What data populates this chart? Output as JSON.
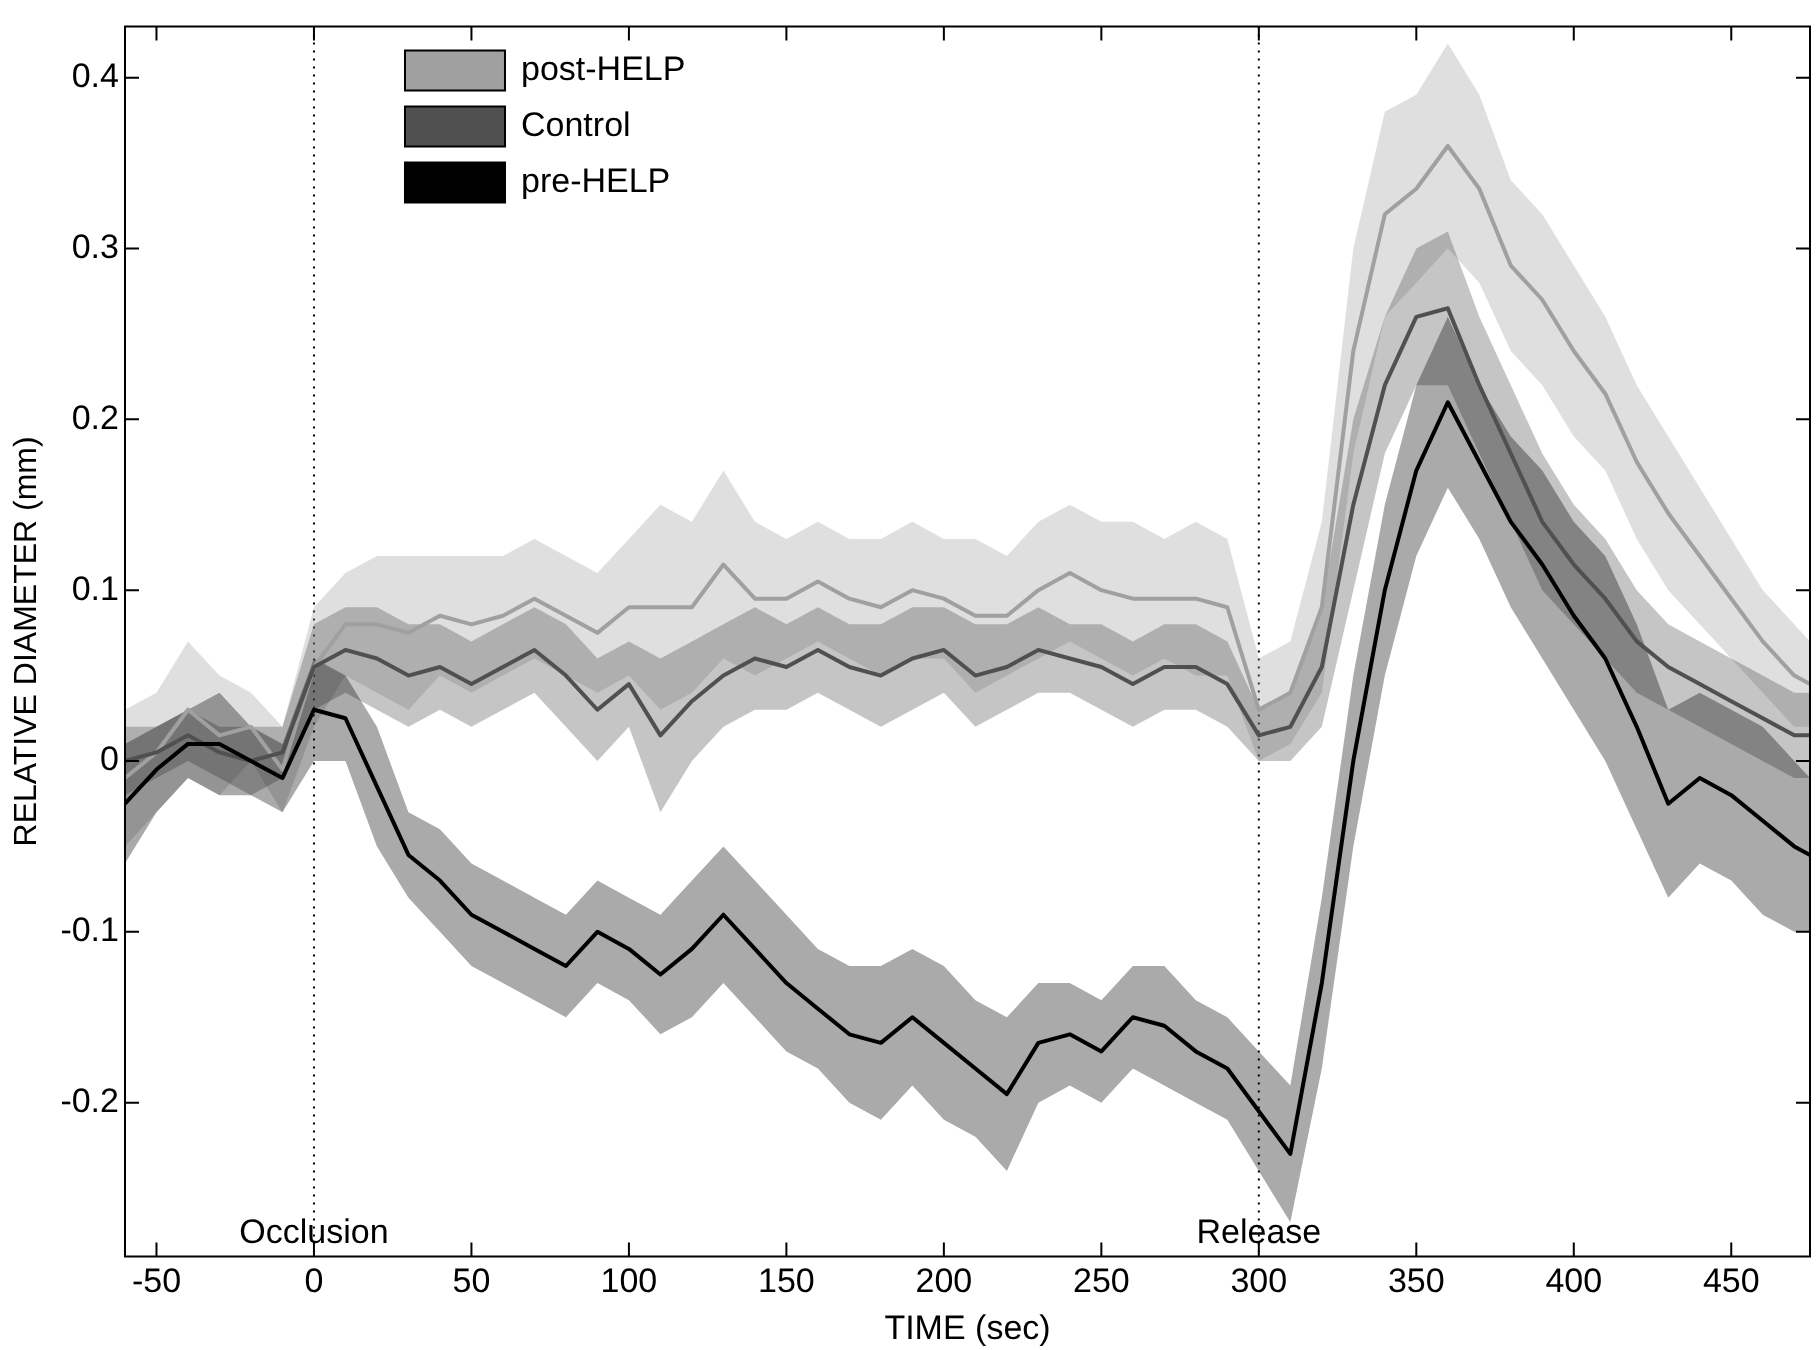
{
  "chart_data": {
    "type": "line",
    "xlabel": "TIME (sec)",
    "ylabel": "RELATIVE DIAMETER (mm)",
    "x": [
      -60,
      -50,
      -40,
      -30,
      -20,
      -10,
      0,
      10,
      20,
      30,
      40,
      50,
      60,
      70,
      80,
      90,
      100,
      110,
      120,
      130,
      140,
      150,
      160,
      170,
      180,
      190,
      200,
      210,
      220,
      230,
      240,
      250,
      260,
      270,
      280,
      290,
      300,
      310,
      320,
      330,
      340,
      350,
      360,
      370,
      380,
      390,
      400,
      410,
      420,
      430,
      440,
      450,
      460,
      470,
      475
    ],
    "series": [
      {
        "name": "post-HELP",
        "color": "#a0a0a0",
        "values": [
          -0.01,
          0.005,
          0.03,
          0.015,
          0.02,
          -0.005,
          0.055,
          0.08,
          0.08,
          0.075,
          0.085,
          0.08,
          0.085,
          0.095,
          0.085,
          0.075,
          0.09,
          0.09,
          0.09,
          0.115,
          0.095,
          0.095,
          0.105,
          0.095,
          0.09,
          0.1,
          0.095,
          0.085,
          0.085,
          0.1,
          0.11,
          0.1,
          0.095,
          0.095,
          0.095,
          0.09,
          0.03,
          0.04,
          0.09,
          0.24,
          0.32,
          0.335,
          0.36,
          0.335,
          0.29,
          0.27,
          0.24,
          0.215,
          0.175,
          0.145,
          0.12,
          0.095,
          0.07,
          0.05,
          0.045
        ],
        "lower": [
          -0.05,
          -0.03,
          -0.01,
          -0.02,
          0.0,
          -0.03,
          0.02,
          0.05,
          0.04,
          0.03,
          0.05,
          0.04,
          0.05,
          0.06,
          0.05,
          0.04,
          0.05,
          0.03,
          0.04,
          0.06,
          0.05,
          0.06,
          0.07,
          0.06,
          0.05,
          0.06,
          0.06,
          0.04,
          0.05,
          0.06,
          0.07,
          0.06,
          0.05,
          0.06,
          0.05,
          0.05,
          0.0,
          0.01,
          0.04,
          0.18,
          0.26,
          0.28,
          0.3,
          0.28,
          0.24,
          0.22,
          0.19,
          0.17,
          0.13,
          0.1,
          0.08,
          0.06,
          0.04,
          0.02,
          0.02
        ],
        "upper": [
          0.03,
          0.04,
          0.07,
          0.05,
          0.04,
          0.02,
          0.09,
          0.11,
          0.12,
          0.12,
          0.12,
          0.12,
          0.12,
          0.13,
          0.12,
          0.11,
          0.13,
          0.15,
          0.14,
          0.17,
          0.14,
          0.13,
          0.14,
          0.13,
          0.13,
          0.14,
          0.13,
          0.13,
          0.12,
          0.14,
          0.15,
          0.14,
          0.14,
          0.13,
          0.14,
          0.13,
          0.06,
          0.07,
          0.14,
          0.3,
          0.38,
          0.39,
          0.42,
          0.39,
          0.34,
          0.32,
          0.29,
          0.26,
          0.22,
          0.19,
          0.16,
          0.13,
          0.1,
          0.08,
          0.07
        ]
      },
      {
        "name": "Control",
        "color": "#505050",
        "values": [
          0,
          0.005,
          0.015,
          0.005,
          0,
          0.005,
          0.055,
          0.065,
          0.06,
          0.05,
          0.055,
          0.045,
          0.055,
          0.065,
          0.05,
          0.03,
          0.045,
          0.015,
          0.035,
          0.05,
          0.06,
          0.055,
          0.065,
          0.055,
          0.05,
          0.06,
          0.065,
          0.05,
          0.055,
          0.065,
          0.06,
          0.055,
          0.045,
          0.055,
          0.055,
          0.045,
          0.015,
          0.02,
          0.055,
          0.15,
          0.22,
          0.26,
          0.265,
          0.22,
          0.18,
          0.14,
          0.115,
          0.095,
          0.07,
          0.055,
          0.045,
          0.035,
          0.025,
          0.015,
          0.015
        ],
        "lower": [
          -0.02,
          -0.01,
          0.0,
          -0.01,
          -0.02,
          -0.01,
          0.03,
          0.04,
          0.03,
          0.02,
          0.03,
          0.02,
          0.03,
          0.04,
          0.02,
          0.0,
          0.02,
          -0.03,
          0.0,
          0.02,
          0.03,
          0.03,
          0.04,
          0.03,
          0.02,
          0.03,
          0.04,
          0.02,
          0.03,
          0.04,
          0.04,
          0.03,
          0.02,
          0.03,
          0.03,
          0.02,
          0.0,
          0.0,
          0.02,
          0.1,
          0.18,
          0.22,
          0.22,
          0.18,
          0.14,
          0.1,
          0.08,
          0.06,
          0.04,
          0.03,
          0.02,
          0.01,
          0.0,
          -0.01,
          -0.01
        ],
        "upper": [
          0.02,
          0.02,
          0.03,
          0.02,
          0.02,
          0.02,
          0.08,
          0.09,
          0.09,
          0.08,
          0.08,
          0.07,
          0.08,
          0.09,
          0.08,
          0.06,
          0.07,
          0.06,
          0.07,
          0.08,
          0.09,
          0.08,
          0.09,
          0.08,
          0.08,
          0.09,
          0.09,
          0.08,
          0.08,
          0.09,
          0.08,
          0.08,
          0.07,
          0.08,
          0.08,
          0.07,
          0.03,
          0.04,
          0.09,
          0.2,
          0.26,
          0.3,
          0.31,
          0.26,
          0.22,
          0.18,
          0.15,
          0.13,
          0.1,
          0.08,
          0.07,
          0.06,
          0.05,
          0.04,
          0.04
        ]
      },
      {
        "name": "pre-HELP",
        "color": "#000000",
        "values": [
          -0.025,
          -0.005,
          0.01,
          0.01,
          0,
          -0.01,
          0.03,
          0.025,
          -0.015,
          -0.055,
          -0.07,
          -0.09,
          -0.1,
          -0.11,
          -0.12,
          -0.1,
          -0.11,
          -0.125,
          -0.11,
          -0.09,
          -0.11,
          -0.13,
          -0.145,
          -0.16,
          -0.165,
          -0.15,
          -0.165,
          -0.18,
          -0.195,
          -0.165,
          -0.16,
          -0.17,
          -0.15,
          -0.155,
          -0.17,
          -0.18,
          -0.205,
          -0.23,
          -0.13,
          0,
          0.1,
          0.17,
          0.21,
          0.175,
          0.14,
          0.115,
          0.085,
          0.06,
          0.02,
          -0.025,
          -0.01,
          -0.02,
          -0.035,
          -0.05,
          -0.055
        ],
        "lower": [
          -0.06,
          -0.03,
          -0.01,
          -0.02,
          -0.02,
          -0.03,
          0.0,
          0.0,
          -0.05,
          -0.08,
          -0.1,
          -0.12,
          -0.13,
          -0.14,
          -0.15,
          -0.13,
          -0.14,
          -0.16,
          -0.15,
          -0.13,
          -0.15,
          -0.17,
          -0.18,
          -0.2,
          -0.21,
          -0.19,
          -0.21,
          -0.22,
          -0.24,
          -0.2,
          -0.19,
          -0.2,
          -0.18,
          -0.19,
          -0.2,
          -0.21,
          -0.24,
          -0.27,
          -0.18,
          -0.05,
          0.05,
          0.12,
          0.16,
          0.13,
          0.09,
          0.06,
          0.03,
          0.0,
          -0.04,
          -0.08,
          -0.06,
          -0.07,
          -0.09,
          -0.1,
          -0.1
        ],
        "upper": [
          0.01,
          0.02,
          0.03,
          0.04,
          0.02,
          0.01,
          0.06,
          0.05,
          0.02,
          -0.03,
          -0.04,
          -0.06,
          -0.07,
          -0.08,
          -0.09,
          -0.07,
          -0.08,
          -0.09,
          -0.07,
          -0.05,
          -0.07,
          -0.09,
          -0.11,
          -0.12,
          -0.12,
          -0.11,
          -0.12,
          -0.14,
          -0.15,
          -0.13,
          -0.13,
          -0.14,
          -0.12,
          -0.12,
          -0.14,
          -0.15,
          -0.17,
          -0.19,
          -0.08,
          0.05,
          0.15,
          0.22,
          0.26,
          0.22,
          0.19,
          0.17,
          0.14,
          0.12,
          0.08,
          0.03,
          0.04,
          0.03,
          0.02,
          0.0,
          -0.01
        ]
      }
    ],
    "xlim": [
      -60,
      475
    ],
    "xticks": [
      -50,
      0,
      50,
      100,
      150,
      200,
      250,
      300,
      350,
      400,
      450
    ],
    "ylim": [
      -0.29,
      0.43
    ],
    "yticks": [
      -0.2,
      -0.1,
      0,
      0.1,
      0.2,
      0.3,
      0.4
    ],
    "ref_lines": [
      {
        "axis": "x",
        "value": 0,
        "label": "Occlusion",
        "line_style": "dotted"
      },
      {
        "axis": "x",
        "value": 300,
        "label": "Release",
        "line_style": "dotted"
      }
    ],
    "grid": false,
    "legend": "top left",
    "marker": "none",
    "line_style": "solid"
  }
}
